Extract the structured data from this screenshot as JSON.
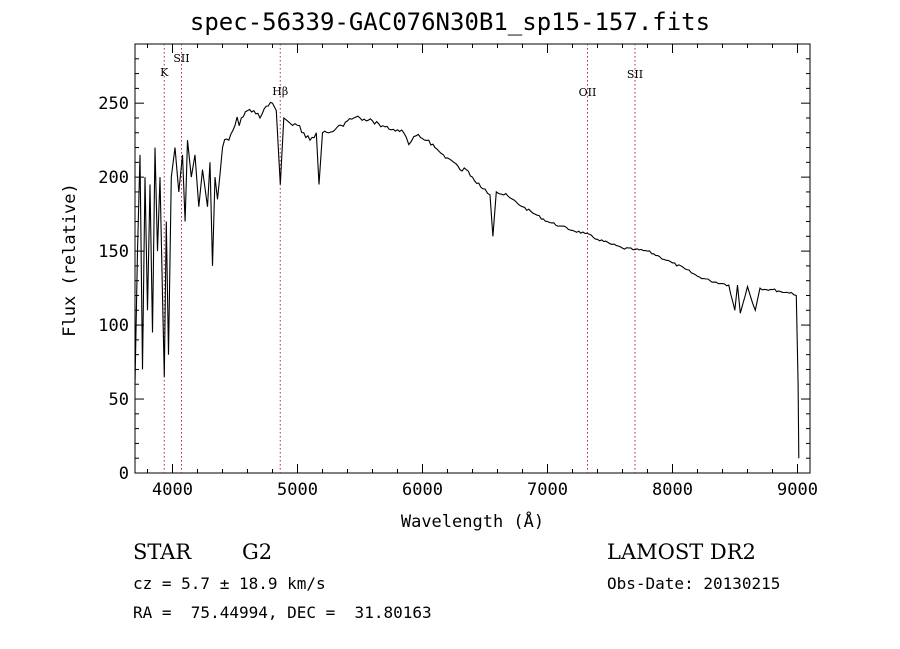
{
  "title": "spec-56339-GAC076N30B1_sp15-157.fits",
  "info": {
    "class": "STAR",
    "subclass": "G2",
    "survey": "LAMOST DR2",
    "cz": "cz = 5.7 ± 18.9 km/s",
    "obs_date": "Obs-Date: 20130215",
    "coords": "RA =  75.44994, DEC =  31.80163"
  },
  "chart_data": {
    "type": "line",
    "xlabel": "Wavelength (Å)",
    "ylabel": "Flux (relative)",
    "xlim": [
      3700,
      9100
    ],
    "ylim": [
      0,
      290
    ],
    "xticks": [
      4000,
      5000,
      6000,
      7000,
      8000,
      9000
    ],
    "yticks": [
      0,
      50,
      100,
      150,
      200,
      250
    ],
    "lines": [
      {
        "label": "K",
        "x": 3934
      },
      {
        "label": "SII",
        "x": 4072
      },
      {
        "label": "Hβ",
        "x": 4862
      },
      {
        "label": "OII",
        "x": 7320
      },
      {
        "label": "SII",
        "x": 7700
      }
    ],
    "series": [
      {
        "x": [
          3700,
          3720,
          3740,
          3760,
          3780,
          3800,
          3820,
          3840,
          3860,
          3880,
          3900,
          3920,
          3934,
          3950,
          3968,
          3990,
          4020,
          4050,
          4080,
          4101,
          4120,
          4150,
          4180,
          4210,
          4240,
          4280,
          4300,
          4320,
          4340,
          4360,
          4400,
          4450,
          4500,
          4550,
          4600,
          4650,
          4700,
          4750,
          4800,
          4830,
          4862,
          4890,
          4920,
          4960,
          5000,
          5050,
          5100,
          5150,
          5172,
          5200,
          5250,
          5300,
          5350,
          5400,
          5450,
          5500,
          5550,
          5600,
          5650,
          5700,
          5750,
          5800,
          5850,
          5890,
          5950,
          6000,
          6050,
          6100,
          6150,
          6200,
          6250,
          6300,
          6350,
          6400,
          6450,
          6500,
          6540,
          6563,
          6590,
          6650,
          6700,
          6800,
          6900,
          7000,
          7100,
          7200,
          7300,
          7400,
          7500,
          7600,
          7700,
          7800,
          7900,
          8000,
          8100,
          8200,
          8300,
          8400,
          8450,
          8498,
          8520,
          8542,
          8600,
          8662,
          8700,
          8750,
          8800,
          8850,
          8900,
          8950,
          8990,
          9005,
          9010
        ],
        "y": [
          60,
          150,
          215,
          70,
          200,
          110,
          195,
          95,
          220,
          150,
          200,
          120,
          65,
          170,
          80,
          200,
          220,
          190,
          215,
          170,
          225,
          200,
          215,
          180,
          205,
          180,
          210,
          140,
          200,
          185,
          220,
          225,
          235,
          240,
          245,
          245,
          240,
          248,
          250,
          245,
          195,
          240,
          238,
          235,
          235,
          230,
          225,
          230,
          195,
          230,
          230,
          232,
          235,
          238,
          240,
          240,
          238,
          238,
          236,
          234,
          232,
          232,
          230,
          222,
          228,
          226,
          225,
          220,
          216,
          213,
          210,
          205,
          205,
          200,
          196,
          192,
          188,
          160,
          190,
          188,
          186,
          180,
          175,
          170,
          167,
          164,
          162,
          158,
          155,
          152,
          151,
          150,
          146,
          142,
          138,
          133,
          130,
          128,
          127,
          110,
          127,
          108,
          126,
          110,
          125,
          124,
          124,
          123,
          122,
          122,
          120,
          60,
          10
        ]
      }
    ]
  }
}
